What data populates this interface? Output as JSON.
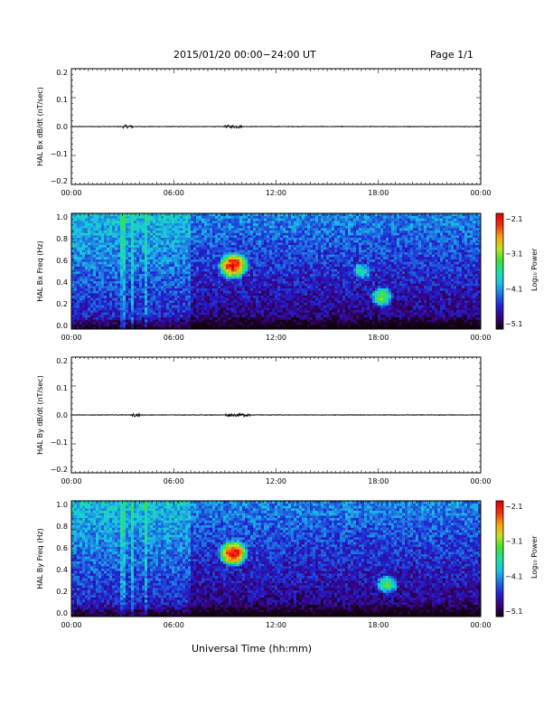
{
  "header": {
    "title": "2015/01/20  00:00−24:00 UT",
    "page": "Page 1/1"
  },
  "xaxis_label": "Universal Time (hh:mm)",
  "colors": {
    "axis": "#000000",
    "background": "#ffffff",
    "colormap": [
      "#120012",
      "#3a007a",
      "#2020d0",
      "#1f6fe0",
      "#19c3e6",
      "#1fe0a0",
      "#40e030",
      "#c8e020",
      "#f8a010",
      "#f03010",
      "#e00000"
    ]
  },
  "chart_data": [
    {
      "type": "line",
      "ylabel": "HAL Bx dB/dt (nT/sec)",
      "xlim_hours": [
        0,
        24
      ],
      "ylim": [
        -0.2,
        0.2
      ],
      "yticks": [
        "0.2",
        "0.1",
        "0.0",
        "−0.1",
        "−0.2"
      ],
      "xticks": [
        "00:00",
        "06:00",
        "12:00",
        "18:00",
        "00:00"
      ],
      "baseline": 0.0,
      "activity_bursts_hours": [
        [
          3.0,
          3.6
        ],
        [
          9.0,
          10.0
        ]
      ]
    },
    {
      "type": "heatmap",
      "ylabel": "HAL Bx Freq (Hz)",
      "xlim_hours": [
        0,
        24
      ],
      "ylim": [
        0.0,
        1.0
      ],
      "yticks": [
        "1.0",
        "0.8",
        "0.6",
        "0.4",
        "0.2",
        "0.0"
      ],
      "xticks": [
        "00:00",
        "06:00",
        "12:00",
        "18:00",
        "00:00"
      ],
      "colorbar": {
        "label": "Log₁₀ Power",
        "ticks": [
          "−2.1",
          "−3.1",
          "−4.1",
          "−5.1"
        ],
        "range": [
          -5.1,
          -2.1
        ]
      },
      "features": [
        {
          "t": 9.5,
          "f": 0.55,
          "peak": -2.2
        },
        {
          "t": 18.2,
          "f": 0.28,
          "peak": -3.3
        },
        {
          "t": 17.0,
          "f": 0.5,
          "peak": -3.6
        }
      ]
    },
    {
      "type": "line",
      "ylabel": "HAL By dB/dt (nT/sec)",
      "xlim_hours": [
        0,
        24
      ],
      "ylim": [
        -0.2,
        0.2
      ],
      "yticks": [
        "0.2",
        "0.1",
        "0.0",
        "−0.1",
        "−0.2"
      ],
      "xticks": [
        "00:00",
        "06:00",
        "12:00",
        "18:00",
        "00:00"
      ],
      "baseline": 0.0,
      "activity_bursts_hours": [
        [
          3.5,
          4.0
        ],
        [
          9.0,
          10.5
        ]
      ]
    },
    {
      "type": "heatmap",
      "ylabel": "HAL By Freq (Hz)",
      "xlim_hours": [
        0,
        24
      ],
      "ylim": [
        0.0,
        1.0
      ],
      "yticks": [
        "1.0",
        "0.8",
        "0.6",
        "0.4",
        "0.2",
        "0.0"
      ],
      "xticks": [
        "00:00",
        "06:00",
        "12:00",
        "18:00",
        "00:00"
      ],
      "colorbar": {
        "label": "Log₁₀ Power",
        "ticks": [
          "−2.1",
          "−3.1",
          "−4.1",
          "−5.1"
        ],
        "range": [
          -5.1,
          -2.1
        ]
      },
      "features": [
        {
          "t": 9.5,
          "f": 0.55,
          "peak": -2.2
        },
        {
          "t": 18.5,
          "f": 0.28,
          "peak": -3.4
        }
      ]
    }
  ]
}
